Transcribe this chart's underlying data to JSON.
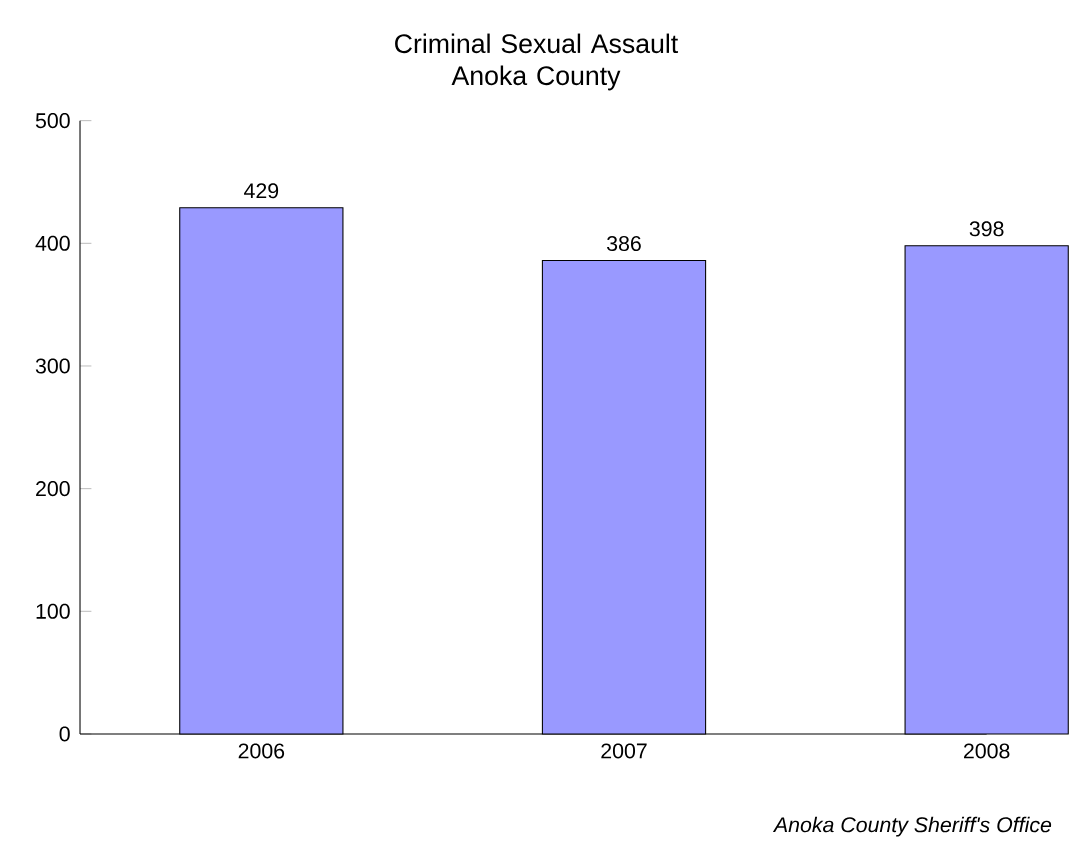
{
  "chart_data": {
    "type": "bar",
    "title": "Criminal Sexual Assault\nAnoka County",
    "categories": [
      "2006",
      "2007",
      "2008"
    ],
    "values": [
      429,
      386,
      398
    ],
    "color": "#9999ff",
    "ylim": [
      0,
      500
    ],
    "yticks": [
      0,
      100,
      200,
      300,
      400,
      500
    ],
    "data_labels": true,
    "annotations": [
      "*Anoka County Sheriff's Office*"
    ]
  }
}
